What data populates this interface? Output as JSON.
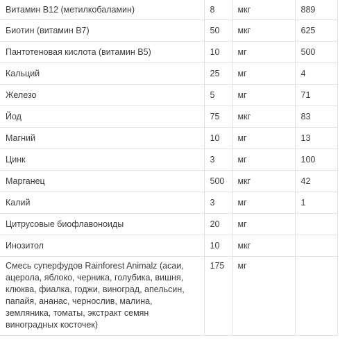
{
  "table": {
    "rows": [
      {
        "name": "Витамин B12 (метилкобаламин)",
        "amount": "8",
        "unit": "мкг",
        "dv": "889"
      },
      {
        "name": "Биотин (витамин B7)",
        "amount": "50",
        "unit": "мкг",
        "dv": "625"
      },
      {
        "name": "Пантотеновая кислота (витамин B5)",
        "amount": "10",
        "unit": "мг",
        "dv": "500"
      },
      {
        "name": "Кальций",
        "amount": "25",
        "unit": "мг",
        "dv": "4"
      },
      {
        "name": "Железо",
        "amount": "5",
        "unit": "мг",
        "dv": "71"
      },
      {
        "name": "Йод",
        "amount": "75",
        "unit": "мкг",
        "dv": "83"
      },
      {
        "name": "Магний",
        "amount": "10",
        "unit": "мг",
        "dv": "13"
      },
      {
        "name": "Цинк",
        "amount": "3",
        "unit": "мг",
        "dv": "100"
      },
      {
        "name": "Марганец",
        "amount": "500",
        "unit": "мкг",
        "dv": "42"
      },
      {
        "name": "Калий",
        "amount": "3",
        "unit": "мг",
        "dv": "1"
      },
      {
        "name": "Цитрусовые биофлавоноиды",
        "amount": "20",
        "unit": "мг",
        "dv": ""
      },
      {
        "name": "Инозитол",
        "amount": "10",
        "unit": "мкг",
        "dv": ""
      },
      {
        "name": "Смесь суперфудов Rainforest Animalz (асаи, ацерола, яблоко, черника, голубика, вишня, клюква, фиалка, годжи, виноград, апельсин, папайя, ананас, чернослив, малина, земляника, томаты, экстракт семян виноградных косточек)",
        "amount": "175",
        "unit": "мг",
        "dv": ""
      }
    ]
  }
}
